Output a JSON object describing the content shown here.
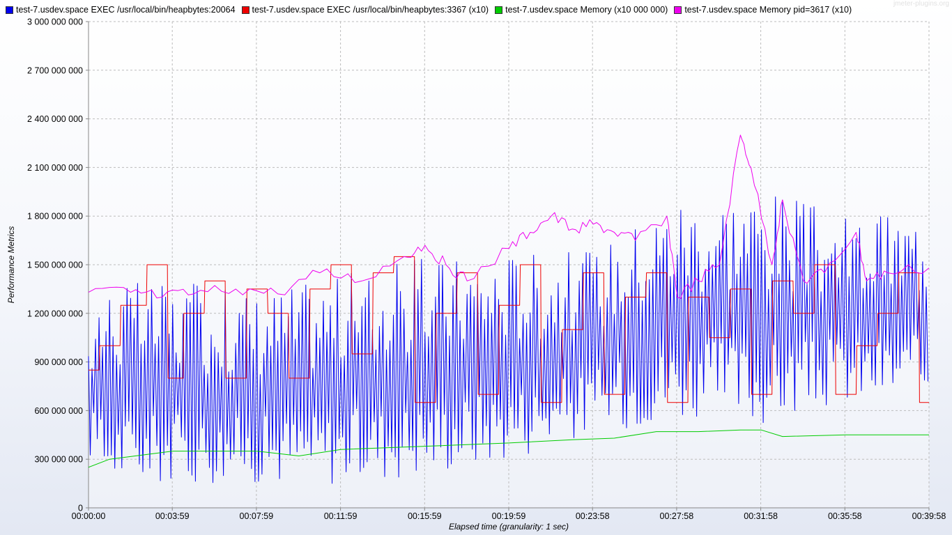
{
  "watermark": "jmeter-plugins.org",
  "chart_data": {
    "type": "line",
    "xlabel": "Elapsed time (granularity: 1 sec)",
    "ylabel": "Performance Metrics",
    "ylim": [
      0,
      3000000000
    ],
    "xlim": [
      "00:00:00",
      "00:39:58"
    ],
    "grid": true,
    "legend_placement": "top",
    "y_ticks": [
      "0",
      "300 000 000",
      "600 000 000",
      "900 000 000",
      "1 200 000 000",
      "1 500 000 000",
      "1 800 000 000",
      "2 100 000 000",
      "2 400 000 000",
      "2 700 000 000",
      "3 000 000 000"
    ],
    "x_ticks": [
      "00:00:00",
      "00:03:59",
      "00:07:59",
      "00:11:59",
      "00:15:59",
      "00:19:59",
      "00:23:58",
      "00:27:58",
      "00:31:58",
      "00:35:58",
      "00:39:58"
    ],
    "series": [
      {
        "name": "test-7.usdev.space EXEC /usr/local/bin/heapbytes:20064",
        "color": "#0000ee",
        "style": "oscillating",
        "x": [
          "00:00:00",
          "00:03:59",
          "00:07:59",
          "00:11:59",
          "00:15:59",
          "00:19:59",
          "00:23:58",
          "00:27:58",
          "00:31:58",
          "00:35:58",
          "00:39:58"
        ],
        "upper": [
          1400000000,
          1400000000,
          1350000000,
          1450000000,
          1550000000,
          1600000000,
          1600000000,
          1950000000,
          2000000000,
          1800000000,
          1850000000
        ],
        "lower": [
          150000000,
          150000000,
          150000000,
          150000000,
          200000000,
          300000000,
          450000000,
          550000000,
          500000000,
          650000000,
          650000000
        ]
      },
      {
        "name": "test-7.usdev.space EXEC /usr/local/bin/heapbytes:3367 (x10)",
        "color": "#ee0000",
        "style": "step",
        "x": [
          "00:00:00",
          "00:01:00",
          "00:02:00",
          "00:03:30",
          "00:04:00",
          "00:05:00",
          "00:06:00",
          "00:07:00",
          "00:08:00",
          "00:09:00",
          "00:10:00",
          "00:11:00",
          "00:12:00",
          "00:13:00",
          "00:14:00",
          "00:15:00",
          "00:16:00",
          "00:17:00",
          "00:18:00",
          "00:19:00",
          "00:20:00",
          "00:21:00",
          "00:22:00",
          "00:23:00",
          "00:24:00",
          "00:25:00",
          "00:26:00",
          "00:27:00",
          "00:28:00",
          "00:29:00",
          "00:30:00",
          "00:31:00",
          "00:32:00",
          "00:33:00",
          "00:34:00",
          "00:35:00",
          "00:36:00",
          "00:37:00",
          "00:38:00",
          "00:39:00",
          "00:39:58"
        ],
        "values": [
          850000000,
          1000000000,
          1250000000,
          1500000000,
          800000000,
          1200000000,
          1400000000,
          800000000,
          1350000000,
          1200000000,
          800000000,
          1350000000,
          1500000000,
          950000000,
          1450000000,
          1550000000,
          650000000,
          1200000000,
          1450000000,
          700000000,
          1250000000,
          1500000000,
          650000000,
          1100000000,
          1450000000,
          700000000,
          1300000000,
          1450000000,
          650000000,
          1300000000,
          1050000000,
          1350000000,
          700000000,
          1400000000,
          1200000000,
          1500000000,
          700000000,
          1000000000,
          1200000000,
          1450000000,
          650000000
        ]
      },
      {
        "name": "test-7.usdev.space Memory (x10 000 000)",
        "color": "#00cc00",
        "style": "line",
        "x": [
          "00:00:00",
          "00:01:00",
          "00:04:00",
          "00:08:00",
          "00:10:00",
          "00:12:00",
          "00:16:00",
          "00:20:00",
          "00:23:00",
          "00:25:00",
          "00:27:00",
          "00:29:00",
          "00:31:00",
          "00:32:00",
          "00:33:00",
          "00:36:00",
          "00:39:58"
        ],
        "values": [
          250000000,
          300000000,
          350000000,
          350000000,
          320000000,
          360000000,
          380000000,
          400000000,
          420000000,
          430000000,
          470000000,
          470000000,
          480000000,
          480000000,
          440000000,
          450000000,
          450000000
        ]
      },
      {
        "name": "test-7.usdev.space Memory pid=3617 (x10)",
        "color": "#ee00ee",
        "style": "jagged",
        "x": [
          "00:00:00",
          "00:02:00",
          "00:03:30",
          "00:05:00",
          "00:07:00",
          "00:09:00",
          "00:11:00",
          "00:13:00",
          "00:15:00",
          "00:16:00",
          "00:17:00",
          "00:18:00",
          "00:20:00",
          "00:21:00",
          "00:22:00",
          "00:23:00",
          "00:24:00",
          "00:25:00",
          "00:26:00",
          "00:27:30",
          "00:28:00",
          "00:29:00",
          "00:30:00",
          "00:31:00",
          "00:31:30",
          "00:32:30",
          "00:33:00",
          "00:34:00",
          "00:35:00",
          "00:36:30",
          "00:37:00",
          "00:38:00",
          "00:39:58"
        ],
        "values": [
          1330000000,
          1330000000,
          1300000000,
          1320000000,
          1350000000,
          1320000000,
          1450000000,
          1400000000,
          1550000000,
          1620000000,
          1500000000,
          1400000000,
          1600000000,
          1700000000,
          1800000000,
          1720000000,
          1750000000,
          1700000000,
          1650000000,
          1800000000,
          1300000000,
          1400000000,
          1500000000,
          2300000000,
          2100000000,
          1500000000,
          1900000000,
          1400000000,
          1450000000,
          1700000000,
          1400000000,
          1450000000,
          1480000000
        ]
      }
    ]
  }
}
